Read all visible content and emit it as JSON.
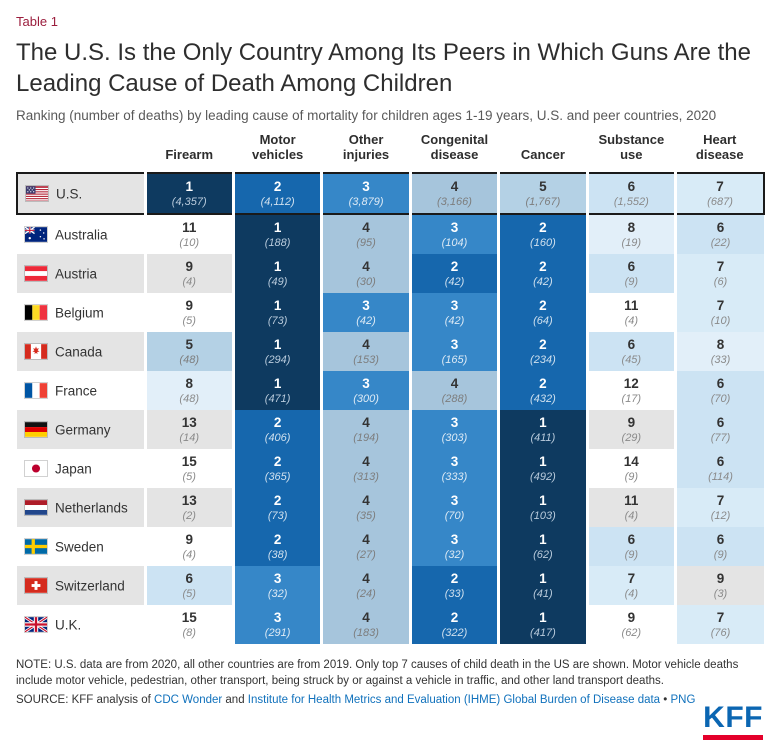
{
  "header": {
    "table_label": "Table 1",
    "title": "The U.S. Is the Only Country Among Its Peers in Which Guns Are the Leading Cause of Death Among Children",
    "subtitle": "Ranking (number of deaths) by leading cause of mortality for children ages 1-19 years, U.S. and peer countries, 2020"
  },
  "colors": {
    "table_label": "#9b1e3d",
    "link": "#1071bc",
    "kff_blue": "#0b66b2",
    "kff_red": "#e4002b",
    "row_alt": "#e4e4e4",
    "highlight_border": "#1a1a1a",
    "rank_colors": {
      "1": {
        "bg": "#0e3a60",
        "num": "#ffffff",
        "count": "#b9cbdc"
      },
      "2": {
        "bg": "#1667ad",
        "num": "#ffffff",
        "count": "#cfe0ee"
      },
      "3": {
        "bg": "#3687c8",
        "num": "#ffffff",
        "count": "#ddeaf5"
      },
      "4": {
        "bg": "#a6c5dc",
        "num": "#333333",
        "count": "#7d7d7d"
      },
      "5": {
        "bg": "#b4d1e5",
        "num": "#333333",
        "count": "#7d7d7d"
      },
      "6": {
        "bg": "#cce3f3",
        "num": "#333333",
        "count": "#8a8a8a"
      },
      "7": {
        "bg": "#d8ebf7",
        "num": "#333333",
        "count": "#8a8a8a"
      },
      "8": {
        "bg": "#e2eff9",
        "num": "#333333",
        "count": "#8a8a8a"
      },
      "default": {
        "bg": "transparent",
        "num": "#333333",
        "count": "#8a8a8a"
      }
    }
  },
  "chart_data": {
    "type": "table",
    "columns": [
      "Firearm",
      "Motor vehicles",
      "Other injuries",
      "Congenital disease",
      "Cancer",
      "Substance use",
      "Heart disease"
    ],
    "rows": [
      {
        "country": "U.S.",
        "flag": "us",
        "highlight": true,
        "cells": [
          {
            "rank": 1,
            "deaths": "4,357"
          },
          {
            "rank": 2,
            "deaths": "4,112"
          },
          {
            "rank": 3,
            "deaths": "3,879"
          },
          {
            "rank": 4,
            "deaths": "3,166"
          },
          {
            "rank": 5,
            "deaths": "1,767"
          },
          {
            "rank": 6,
            "deaths": "1,552"
          },
          {
            "rank": 7,
            "deaths": "687"
          }
        ]
      },
      {
        "country": "Australia",
        "flag": "au",
        "highlight": false,
        "cells": [
          {
            "rank": 11,
            "deaths": "10"
          },
          {
            "rank": 1,
            "deaths": "188"
          },
          {
            "rank": 4,
            "deaths": "95"
          },
          {
            "rank": 3,
            "deaths": "104"
          },
          {
            "rank": 2,
            "deaths": "160"
          },
          {
            "rank": 8,
            "deaths": "19"
          },
          {
            "rank": 6,
            "deaths": "22"
          }
        ]
      },
      {
        "country": "Austria",
        "flag": "at",
        "highlight": false,
        "cells": [
          {
            "rank": 9,
            "deaths": "4"
          },
          {
            "rank": 1,
            "deaths": "49"
          },
          {
            "rank": 4,
            "deaths": "30"
          },
          {
            "rank": 2,
            "deaths": "42"
          },
          {
            "rank": 2,
            "deaths": "42"
          },
          {
            "rank": 6,
            "deaths": "9"
          },
          {
            "rank": 7,
            "deaths": "6"
          }
        ]
      },
      {
        "country": "Belgium",
        "flag": "be",
        "highlight": false,
        "cells": [
          {
            "rank": 9,
            "deaths": "5"
          },
          {
            "rank": 1,
            "deaths": "73"
          },
          {
            "rank": 3,
            "deaths": "42"
          },
          {
            "rank": 3,
            "deaths": "42"
          },
          {
            "rank": 2,
            "deaths": "64"
          },
          {
            "rank": 11,
            "deaths": "4"
          },
          {
            "rank": 7,
            "deaths": "10"
          }
        ]
      },
      {
        "country": "Canada",
        "flag": "ca",
        "highlight": false,
        "cells": [
          {
            "rank": 5,
            "deaths": "48"
          },
          {
            "rank": 1,
            "deaths": "294"
          },
          {
            "rank": 4,
            "deaths": "153"
          },
          {
            "rank": 3,
            "deaths": "165"
          },
          {
            "rank": 2,
            "deaths": "234"
          },
          {
            "rank": 6,
            "deaths": "45"
          },
          {
            "rank": 8,
            "deaths": "33"
          }
        ]
      },
      {
        "country": "France",
        "flag": "fr",
        "highlight": false,
        "cells": [
          {
            "rank": 8,
            "deaths": "48"
          },
          {
            "rank": 1,
            "deaths": "471"
          },
          {
            "rank": 3,
            "deaths": "300"
          },
          {
            "rank": 4,
            "deaths": "288"
          },
          {
            "rank": 2,
            "deaths": "432"
          },
          {
            "rank": 12,
            "deaths": "17"
          },
          {
            "rank": 6,
            "deaths": "70"
          }
        ]
      },
      {
        "country": "Germany",
        "flag": "de",
        "highlight": false,
        "cells": [
          {
            "rank": 13,
            "deaths": "14"
          },
          {
            "rank": 2,
            "deaths": "406"
          },
          {
            "rank": 4,
            "deaths": "194"
          },
          {
            "rank": 3,
            "deaths": "303"
          },
          {
            "rank": 1,
            "deaths": "411"
          },
          {
            "rank": 9,
            "deaths": "29"
          },
          {
            "rank": 6,
            "deaths": "77"
          }
        ]
      },
      {
        "country": "Japan",
        "flag": "jp",
        "highlight": false,
        "cells": [
          {
            "rank": 15,
            "deaths": "5"
          },
          {
            "rank": 2,
            "deaths": "365"
          },
          {
            "rank": 4,
            "deaths": "313"
          },
          {
            "rank": 3,
            "deaths": "333"
          },
          {
            "rank": 1,
            "deaths": "492"
          },
          {
            "rank": 14,
            "deaths": "9"
          },
          {
            "rank": 6,
            "deaths": "114"
          }
        ]
      },
      {
        "country": "Netherlands",
        "flag": "nl",
        "highlight": false,
        "cells": [
          {
            "rank": 13,
            "deaths": "2"
          },
          {
            "rank": 2,
            "deaths": "73"
          },
          {
            "rank": 4,
            "deaths": "35"
          },
          {
            "rank": 3,
            "deaths": "70"
          },
          {
            "rank": 1,
            "deaths": "103"
          },
          {
            "rank": 11,
            "deaths": "4"
          },
          {
            "rank": 7,
            "deaths": "12"
          }
        ]
      },
      {
        "country": "Sweden",
        "flag": "se",
        "highlight": false,
        "cells": [
          {
            "rank": 9,
            "deaths": "4"
          },
          {
            "rank": 2,
            "deaths": "38"
          },
          {
            "rank": 4,
            "deaths": "27"
          },
          {
            "rank": 3,
            "deaths": "32"
          },
          {
            "rank": 1,
            "deaths": "62"
          },
          {
            "rank": 6,
            "deaths": "9"
          },
          {
            "rank": 6,
            "deaths": "9"
          }
        ]
      },
      {
        "country": "Switzerland",
        "flag": "ch",
        "highlight": false,
        "cells": [
          {
            "rank": 6,
            "deaths": "5"
          },
          {
            "rank": 3,
            "deaths": "32"
          },
          {
            "rank": 4,
            "deaths": "24"
          },
          {
            "rank": 2,
            "deaths": "33"
          },
          {
            "rank": 1,
            "deaths": "41"
          },
          {
            "rank": 7,
            "deaths": "4"
          },
          {
            "rank": 9,
            "deaths": "3"
          }
        ]
      },
      {
        "country": "U.K.",
        "flag": "uk",
        "highlight": false,
        "cells": [
          {
            "rank": 15,
            "deaths": "8"
          },
          {
            "rank": 3,
            "deaths": "291"
          },
          {
            "rank": 4,
            "deaths": "183"
          },
          {
            "rank": 2,
            "deaths": "322"
          },
          {
            "rank": 1,
            "deaths": "417"
          },
          {
            "rank": 9,
            "deaths": "62"
          },
          {
            "rank": 7,
            "deaths": "76"
          }
        ]
      }
    ]
  },
  "footer": {
    "note": "NOTE: U.S. data are from 2020, all other countries are from 2019. Only top 7 causes of child death in the US are shown. Motor vehicle deaths include motor vehicle, pedestrian, other transport, being struck by or against a vehicle in traffic, and other land transport deaths.",
    "source_prefix": "SOURCE: KFF analysis of ",
    "source_link_cdc": "CDC Wonder",
    "source_and": " and ",
    "source_link_ihme": "Institute for Health Metrics and Evaluation (IHME) Global Burden of Disease data",
    "source_bullet": " • ",
    "source_link_png": "PNG",
    "kff_logo_text": "KFF"
  }
}
